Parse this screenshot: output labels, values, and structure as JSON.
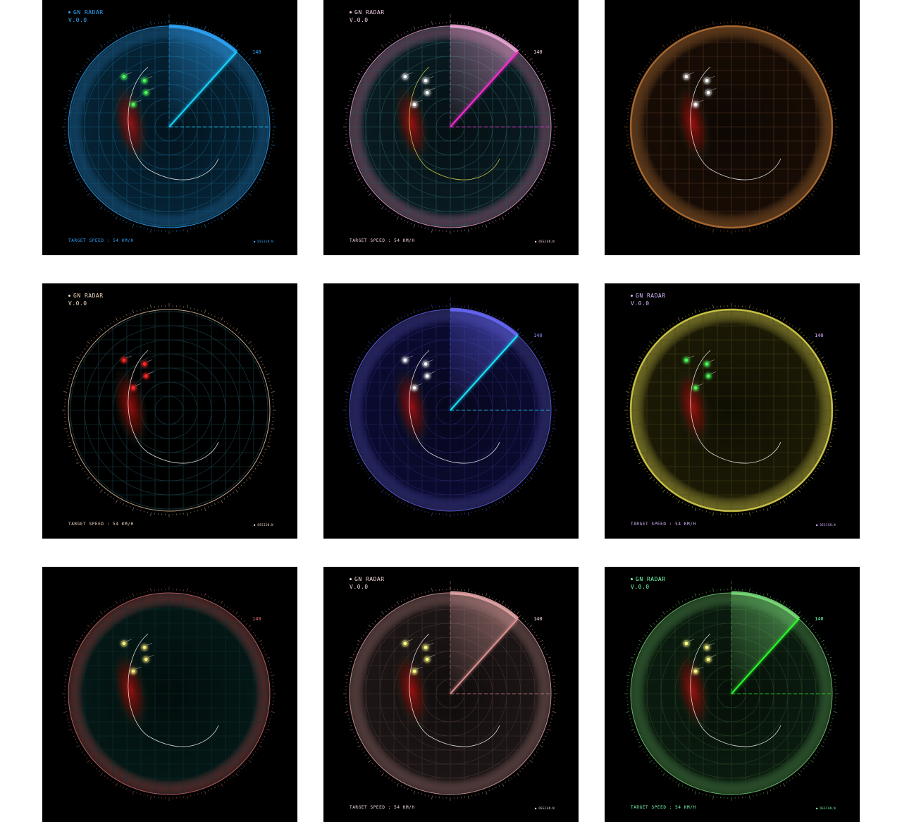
{
  "app": {
    "title": "GN RADAR",
    "version": "V.0.0",
    "speed_text": "TARGET SPEED : 54 KM/H",
    "brand": "● DESIGN.N",
    "range_label": "140"
  },
  "heading_deg": 48,
  "contact_points": [
    {
      "a": 132,
      "r": 0.67
    },
    {
      "a": 118,
      "r": 0.52
    },
    {
      "a": 124,
      "r": 0.41
    },
    {
      "a": 148,
      "r": 0.42
    }
  ],
  "panels": [
    {
      "show_title": true,
      "show_speed": true,
      "show_range": true,
      "accent": "#2fa8ff",
      "sweep": "#18d6ff",
      "contact": "#4cff5a",
      "grid": "#145a7a",
      "fill": "#06263a",
      "label": "#2fa8ff",
      "style": "sweep"
    },
    {
      "show_title": true,
      "show_speed": true,
      "show_range": true,
      "accent": "#f0a8d8",
      "sweep": "#ff2bd6",
      "contact": "#ffffff",
      "grid": "#2a5a60",
      "fill": "#0a1e24",
      "label": "#f4d0e8",
      "style": "sweep"
    },
    {
      "show_title": false,
      "show_speed": false,
      "show_range": false,
      "accent": "#c07838",
      "sweep": "#c07838",
      "contact": "#ffffff",
      "grid": "#5a3a22",
      "fill": "#1a0e06",
      "label": "#c07838",
      "style": "ring"
    },
    {
      "show_title": true,
      "show_speed": true,
      "show_range": false,
      "accent": "#f0c8a0",
      "sweep": "#f0c8a0",
      "contact": "#ff2a2a",
      "grid": "#1e4a52",
      "fill": "#000000",
      "label": "#f0d8c0",
      "style": "grid"
    },
    {
      "show_title": false,
      "show_speed": false,
      "show_range": true,
      "accent": "#6a6aff",
      "sweep": "#18e8ff",
      "contact": "#ffffff",
      "grid": "#2a2a6a",
      "fill": "#0c0c36",
      "label": "#8a8aff",
      "style": "sweep"
    },
    {
      "show_title": true,
      "show_speed": true,
      "show_range": true,
      "accent": "#e8e050",
      "sweep": "#e8e050",
      "contact": "#4cff5a",
      "grid": "#4a4818",
      "fill": "#1e1c06",
      "label": "#d8b8ff",
      "style": "ring"
    },
    {
      "show_title": false,
      "show_speed": false,
      "show_range": true,
      "accent": "#d87070",
      "sweep": "#d87070",
      "contact": "#fff080",
      "grid": "#123434",
      "fill": "#041a18",
      "label": "#d87070",
      "style": "plain"
    },
    {
      "show_title": true,
      "show_speed": true,
      "show_range": true,
      "accent": "#e8a8a8",
      "sweep": "#e09090",
      "contact": "#ffff88",
      "grid": "#4a3838",
      "fill": "#201818",
      "label": "#f4d8d8",
      "style": "sweep"
    },
    {
      "show_title": true,
      "show_speed": true,
      "show_range": true,
      "accent": "#7ae07a",
      "sweep": "#2aff2a",
      "contact": "#ffff88",
      "grid": "#2a4a2a",
      "fill": "#0c1e10",
      "label": "#7affb0",
      "style": "sweep"
    }
  ]
}
